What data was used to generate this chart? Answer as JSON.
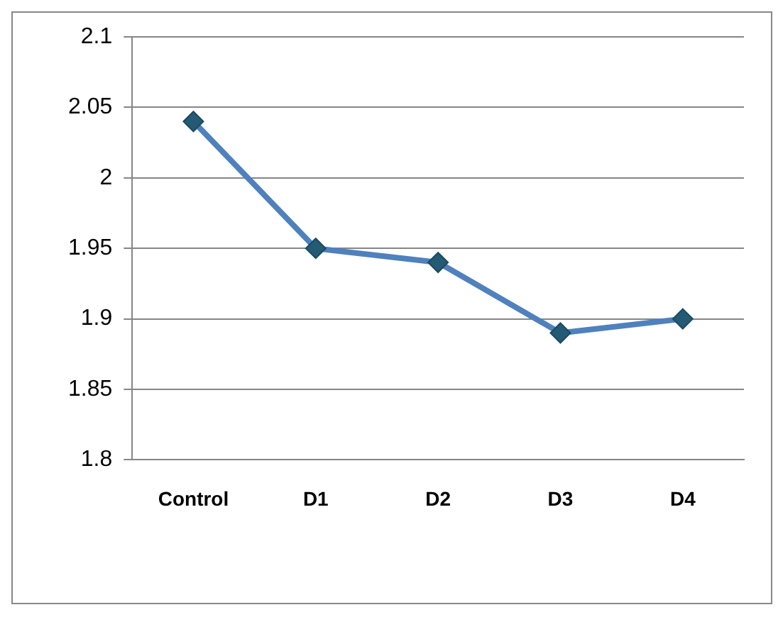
{
  "chart_data": {
    "type": "line",
    "categories": [
      "Control",
      "D1",
      "D2",
      "D3",
      "D4"
    ],
    "series": [
      {
        "color": "#4f81bd",
        "values": [
          2.04,
          1.95,
          1.94,
          1.89,
          1.9
        ]
      }
    ],
    "ylim": [
      1.8,
      2.1
    ],
    "yticks": [
      1.8,
      1.85,
      1.9,
      1.95,
      2,
      2.05,
      2.1
    ],
    "grid": "y",
    "legend": false,
    "marker": "diamond",
    "line_style": "solid"
  }
}
